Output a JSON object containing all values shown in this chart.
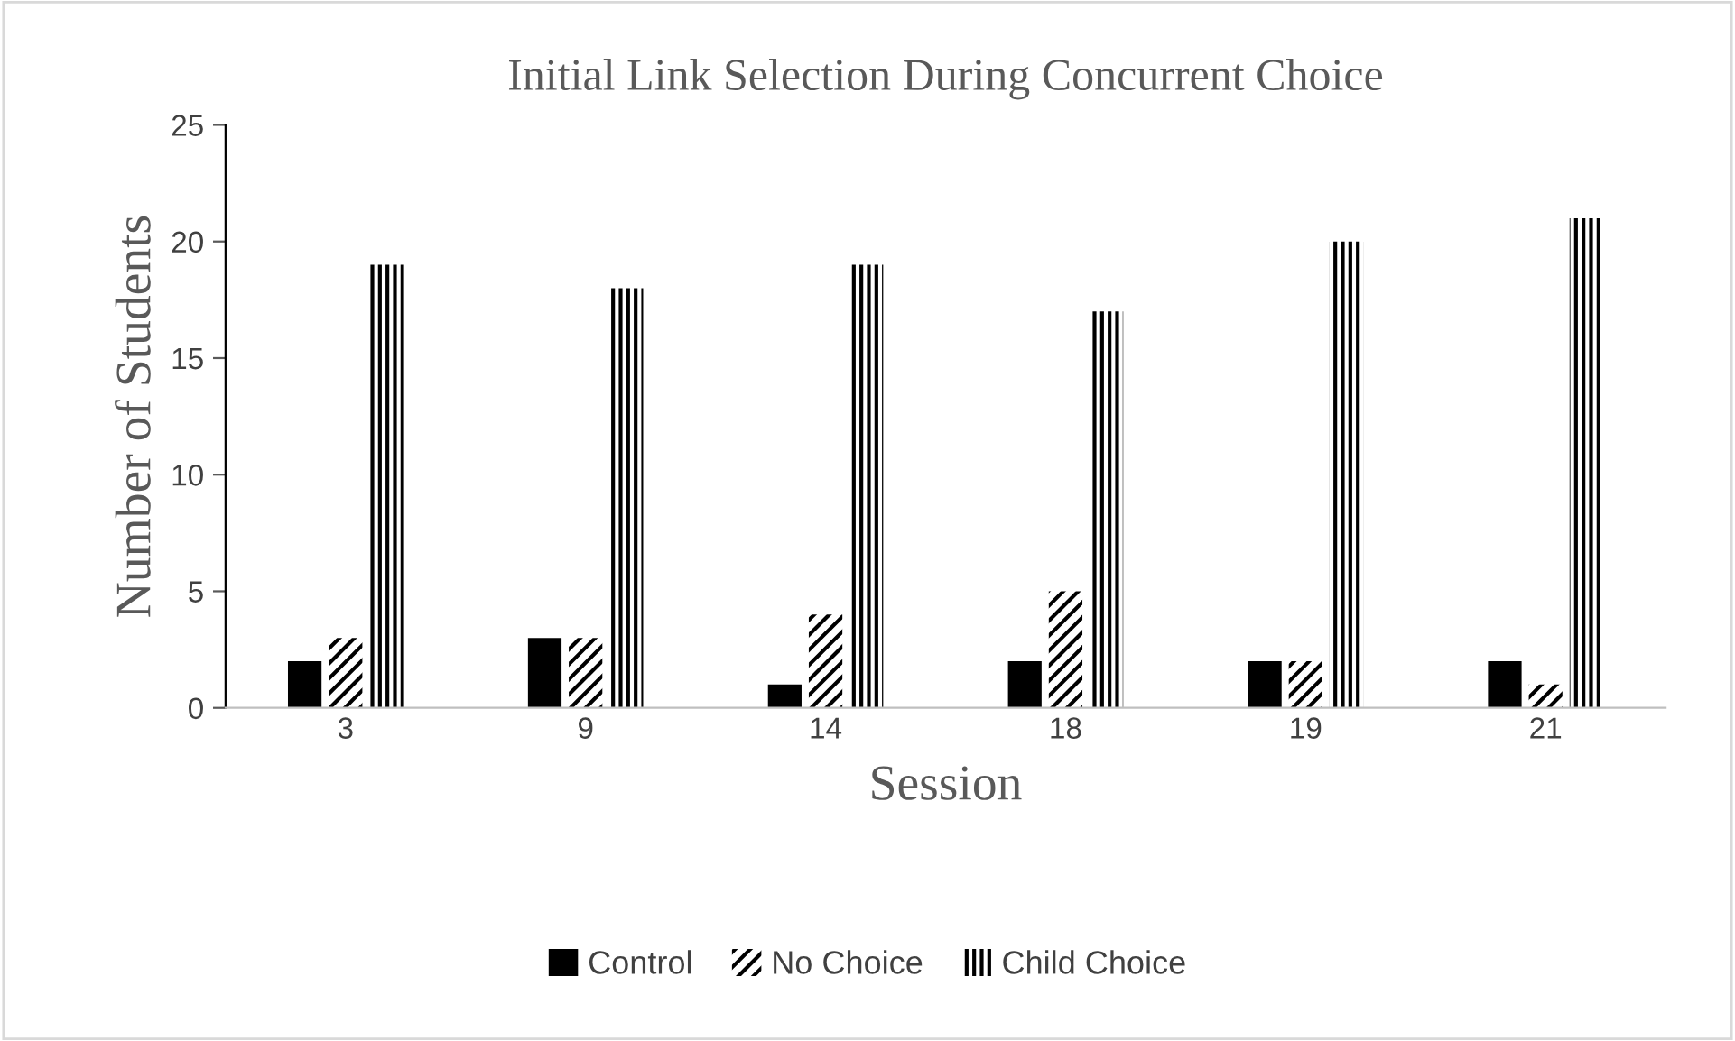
{
  "chart_data": {
    "type": "bar",
    "title": "Initial Link Selection During Concurrent Choice",
    "xlabel": "Session",
    "ylabel": "Number of Students",
    "categories": [
      "3",
      "9",
      "14",
      "18",
      "19",
      "21"
    ],
    "series": [
      {
        "name": "Control",
        "color": "#000000",
        "values": [
          2,
          3,
          1,
          2,
          2,
          2
        ]
      },
      {
        "name": "No Choice",
        "color": "#000000",
        "values": [
          3,
          3,
          4,
          5,
          2,
          1
        ]
      },
      {
        "name": "Child Choice",
        "color": "#000000",
        "values": [
          19,
          18,
          19,
          17,
          20,
          21
        ]
      }
    ],
    "ylim": [
      0,
      25
    ],
    "yticks": [
      0,
      5,
      10,
      15,
      20,
      25
    ],
    "grid": false,
    "legend": "bottom"
  }
}
